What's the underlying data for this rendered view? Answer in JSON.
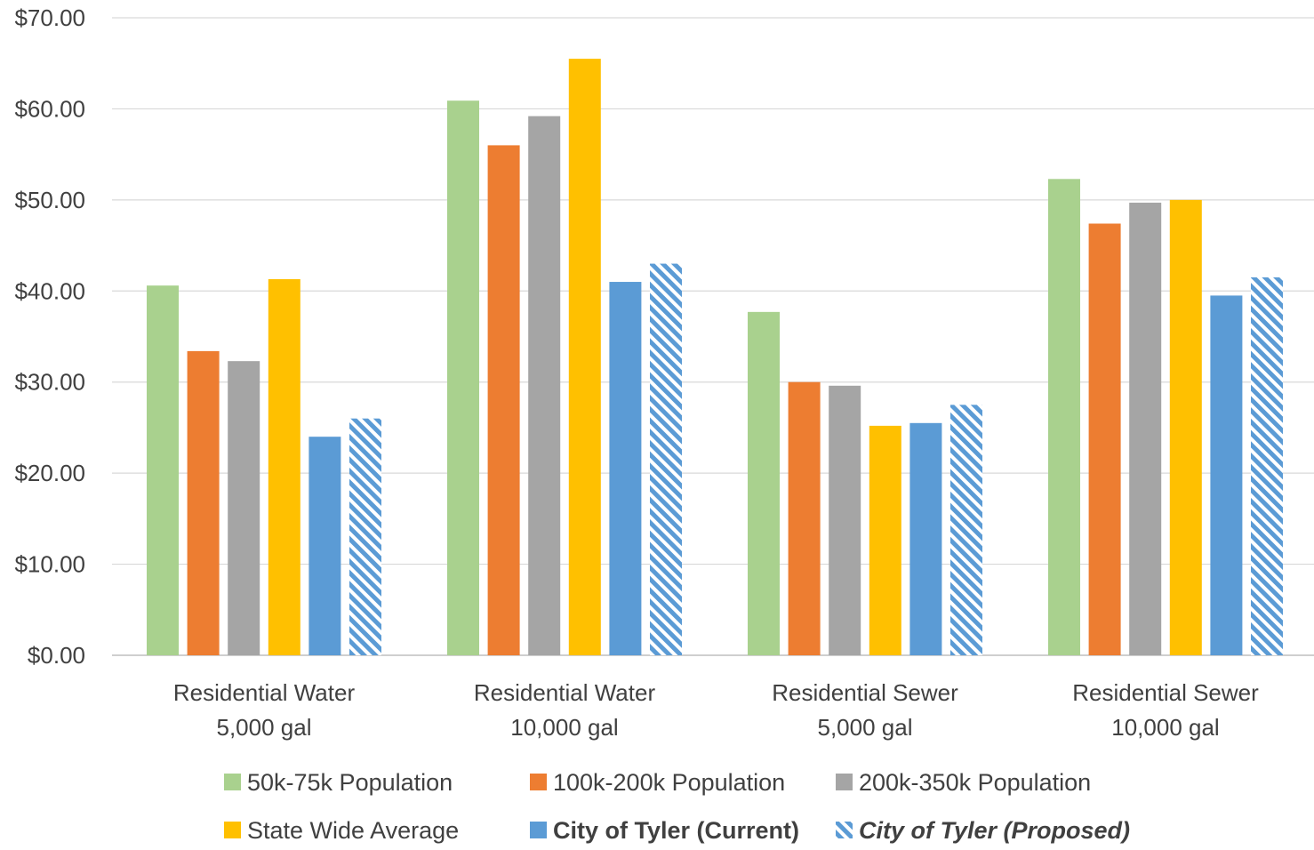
{
  "chart_data": {
    "type": "bar",
    "categories": [
      [
        "Residential Water",
        "5,000 gal"
      ],
      [
        "Residential Water",
        "10,000 gal"
      ],
      [
        "Residential Sewer",
        "5,000 gal"
      ],
      [
        "Residential Sewer",
        "10,000 gal"
      ]
    ],
    "series": [
      {
        "name": "50k-75k Population",
        "color": "#A9D18E",
        "values": [
          40.6,
          60.9,
          37.7,
          52.3
        ]
      },
      {
        "name": "100k-200k Population",
        "color": "#ED7D31",
        "values": [
          33.4,
          56.0,
          30.0,
          47.4
        ]
      },
      {
        "name": "200k-350k Population",
        "color": "#A5A5A5",
        "values": [
          32.3,
          59.2,
          29.6,
          49.7
        ]
      },
      {
        "name": "State Wide Average",
        "color": "#FFC000",
        "values": [
          41.3,
          65.5,
          25.2,
          50.0
        ]
      },
      {
        "name": "City of Tyler (Current)",
        "color": "#5B9BD5",
        "style": "bold",
        "values": [
          24.0,
          41.0,
          25.5,
          39.5
        ]
      },
      {
        "name": "City of Tyler (Proposed)",
        "color": "#5B9BD5",
        "style": "bold-italic",
        "pattern": "hatched",
        "values": [
          26.0,
          43.0,
          27.5,
          41.5
        ]
      }
    ],
    "y_ticks": [
      "$0.00",
      "$10.00",
      "$20.00",
      "$30.00",
      "$40.00",
      "$50.00",
      "$60.00",
      "$70.00"
    ],
    "ylim": [
      0,
      70
    ],
    "grid": true,
    "legend_position": "bottom"
  }
}
